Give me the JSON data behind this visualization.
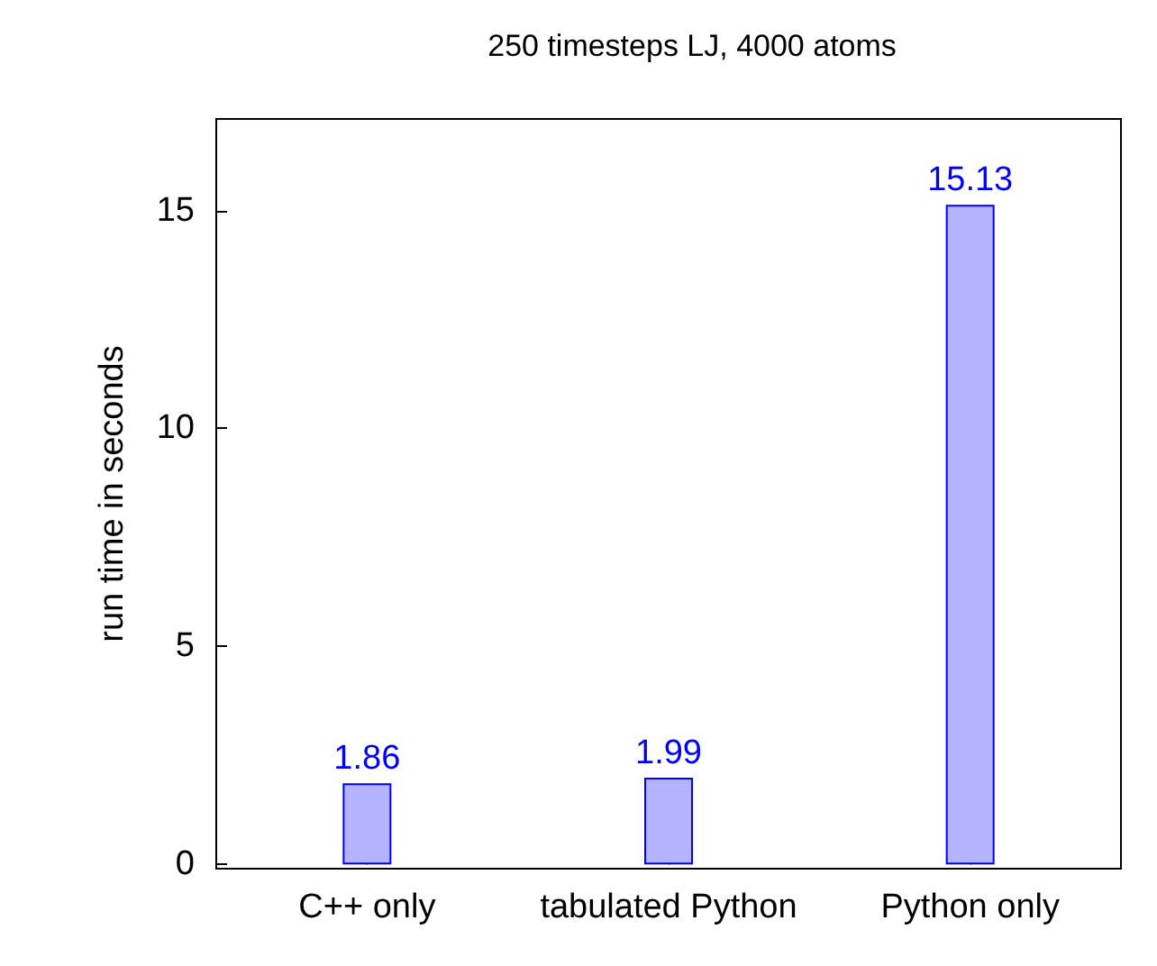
{
  "chart_data": {
    "type": "bar",
    "title": "250 timesteps LJ, 4000 atoms",
    "ylabel": "run time in seconds",
    "categories": [
      "C++ only",
      "tabulated Python",
      "Python only"
    ],
    "values": [
      1.86,
      1.99,
      15.13
    ],
    "color": "#b3b3ff",
    "data_labels": true,
    "ylim": [
      -0.1,
      17.1
    ],
    "yticks": [
      0,
      5,
      10,
      15
    ],
    "grid": false
  }
}
